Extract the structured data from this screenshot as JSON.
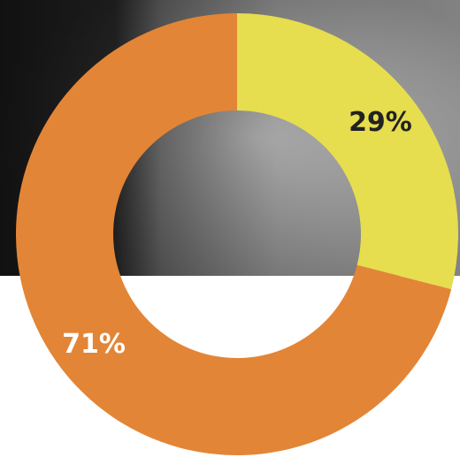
{
  "chart_data": {
    "type": "pie",
    "values": [
      29,
      71
    ],
    "value_labels": [
      "29%",
      "71%"
    ],
    "colors": [
      "#e6dd4f",
      "#e38536"
    ],
    "label_colors": [
      "#222222",
      "#ffffff"
    ],
    "hole": true
  }
}
